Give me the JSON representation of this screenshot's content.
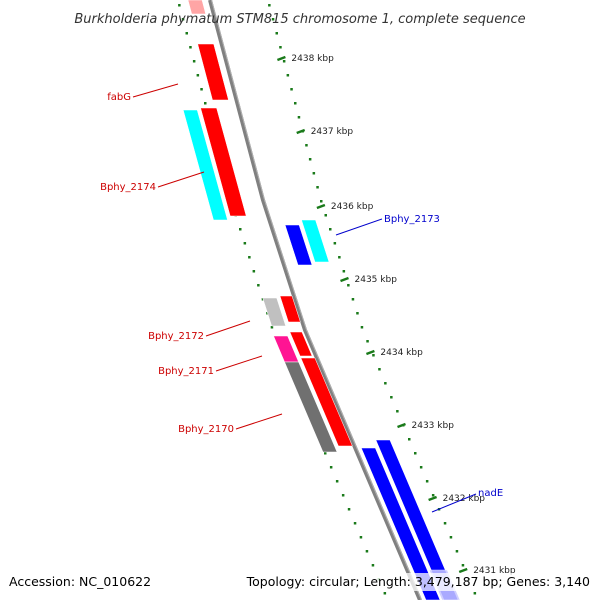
{
  "title": "Burkholderia phymatum STM815 chromosome 1, complete sequence",
  "footer": {
    "accession": "Accession: NC_010622",
    "summary": "Topology: circular; Length: 3,479,187 bp; Genes: 3,140"
  },
  "ticks": [
    "2438 kbp",
    "2437 kbp",
    "2436 kbp",
    "2435 kbp",
    "2434 kbp",
    "2433 kbp",
    "2432 kbp",
    "2431 kbp"
  ],
  "gene_labels": [
    {
      "name": "fabG",
      "color": "#cc0000"
    },
    {
      "name": "Bphy_2174",
      "color": "#cc0000"
    },
    {
      "name": "Bphy_2173",
      "color": "#0000cc"
    },
    {
      "name": "Bphy_2172",
      "color": "#cc0000"
    },
    {
      "name": "Bphy_2171",
      "color": "#cc0000"
    },
    {
      "name": "Bphy_2170",
      "color": "#cc0000"
    },
    {
      "name": "nadE",
      "color": "#0000cc"
    }
  ],
  "colors": {
    "backbone": "#808080",
    "tick_marks": "#1a7a1a",
    "cds_forward": "#ff0000",
    "cds_reverse": "#0000ff",
    "cog_cyan": "#00ffff",
    "cog_magenta": "#ff1493",
    "cog_gray": "#707070",
    "cog_lightgray": "#c0c0c0"
  }
}
